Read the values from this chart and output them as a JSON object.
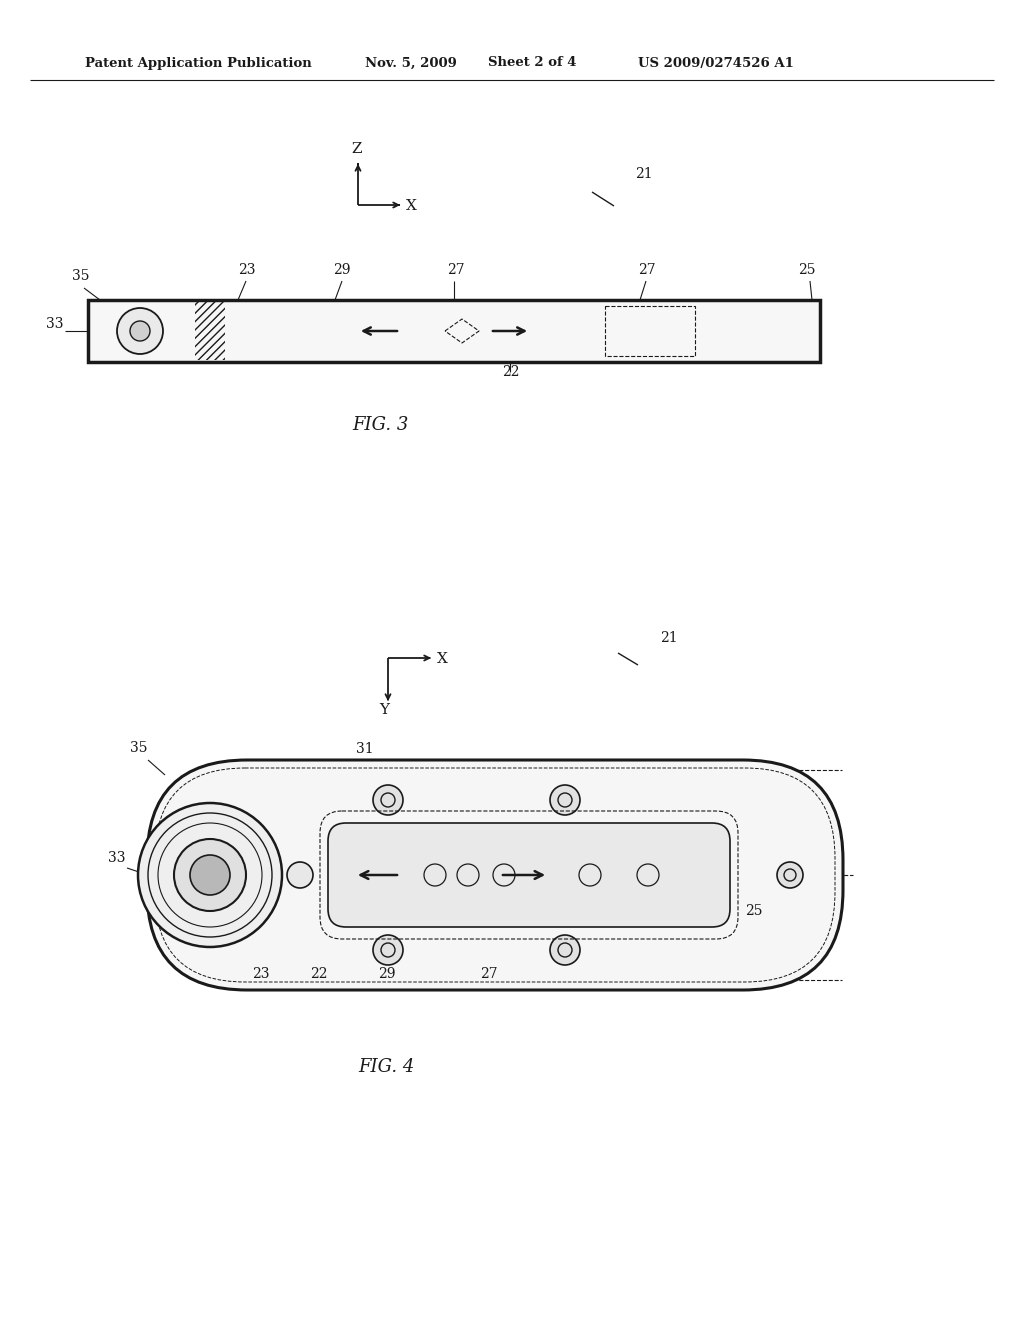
{
  "bg_color": "#ffffff",
  "header_text": "Patent Application Publication",
  "header_date": "Nov. 5, 2009",
  "header_sheet": "Sheet 2 of 4",
  "header_patent": "US 2009/0274526 A1",
  "fig3_label": "FIG. 3",
  "fig4_label": "FIG. 4",
  "line_color": "#1a1a1a",
  "text_color": "#1a1a1a"
}
